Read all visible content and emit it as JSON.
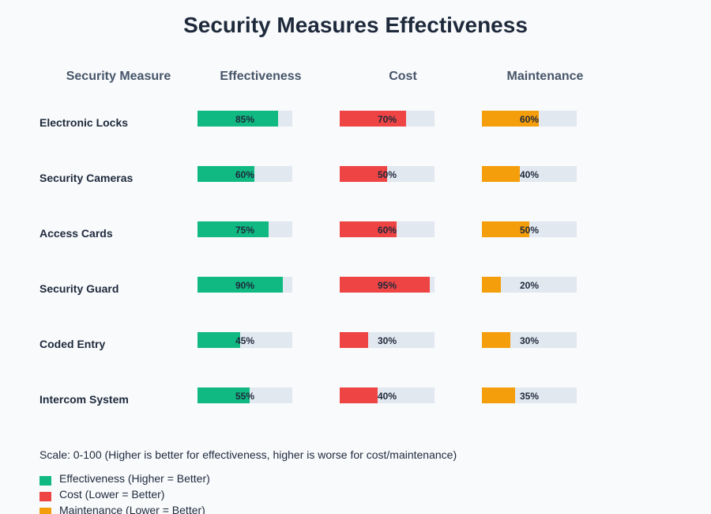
{
  "chart_data": {
    "type": "bar",
    "title": "Security Measures Effectiveness",
    "column_headers": [
      "Security Measure",
      "Effectiveness",
      "Cost",
      "Maintenance"
    ],
    "categories": [
      "Electronic Locks",
      "Security Cameras",
      "Access Cards",
      "Security Guard",
      "Coded Entry",
      "Intercom System"
    ],
    "series": [
      {
        "name": "Effectiveness",
        "color": "#10b981",
        "values": [
          85,
          60,
          75,
          90,
          45,
          55
        ]
      },
      {
        "name": "Cost",
        "color": "#ef4444",
        "values": [
          70,
          50,
          60,
          95,
          30,
          40
        ]
      },
      {
        "name": "Maintenance",
        "color": "#f59e0b",
        "values": [
          60,
          40,
          50,
          20,
          30,
          35
        ]
      }
    ],
    "value_suffix": "%",
    "ylim": [
      0,
      100
    ],
    "track_color": "#e2e8f0",
    "scale_note": "Scale: 0-100 (Higher is better for effectiveness, higher is worse for cost/maintenance)",
    "legend": [
      {
        "label": "Effectiveness (Higher = Better)",
        "color": "#10b981"
      },
      {
        "label": "Cost (Lower = Better)",
        "color": "#ef4444"
      },
      {
        "label": "Maintenance (Lower = Better)",
        "color": "#f59e0b"
      }
    ],
    "legend_position": "bottom-left"
  }
}
